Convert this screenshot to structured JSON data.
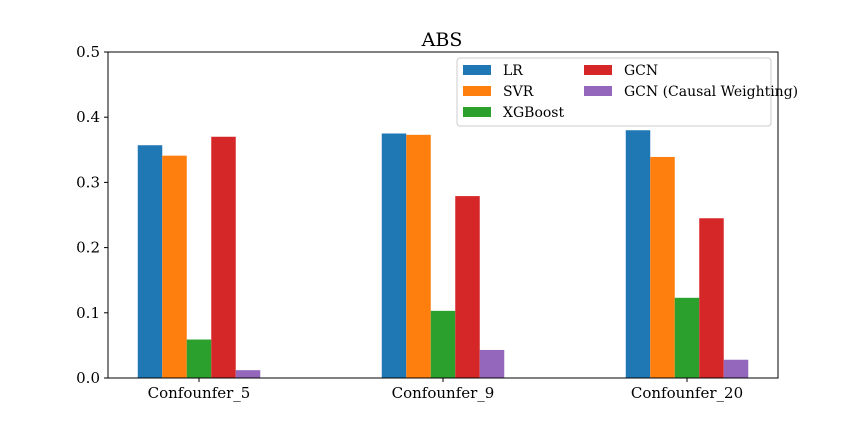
{
  "chart_data": {
    "type": "bar",
    "title": "ABS",
    "xlabel": "",
    "ylabel": "",
    "ylim": [
      0,
      0.5
    ],
    "yticks": [
      "0.0",
      "0.1",
      "0.2",
      "0.3",
      "0.4",
      "0.5"
    ],
    "grid": false,
    "legend_position": "top-right",
    "categories": [
      "Confounfer_5",
      "Confounfer_9",
      "Confounfer_20"
    ],
    "series": [
      {
        "name": "LR",
        "color": "#1f77b4",
        "values": [
          0.357,
          0.375,
          0.38
        ]
      },
      {
        "name": "SVR",
        "color": "#ff7f0e",
        "values": [
          0.341,
          0.373,
          0.339
        ]
      },
      {
        "name": "XGBoost",
        "color": "#2ca02c",
        "values": [
          0.059,
          0.103,
          0.123
        ]
      },
      {
        "name": "GCN",
        "color": "#d62728",
        "values": [
          0.37,
          0.279,
          0.245
        ]
      },
      {
        "name": "GCN (Causal Weighting)",
        "color": "#9467bd",
        "values": [
          0.012,
          0.043,
          0.028
        ]
      }
    ]
  }
}
